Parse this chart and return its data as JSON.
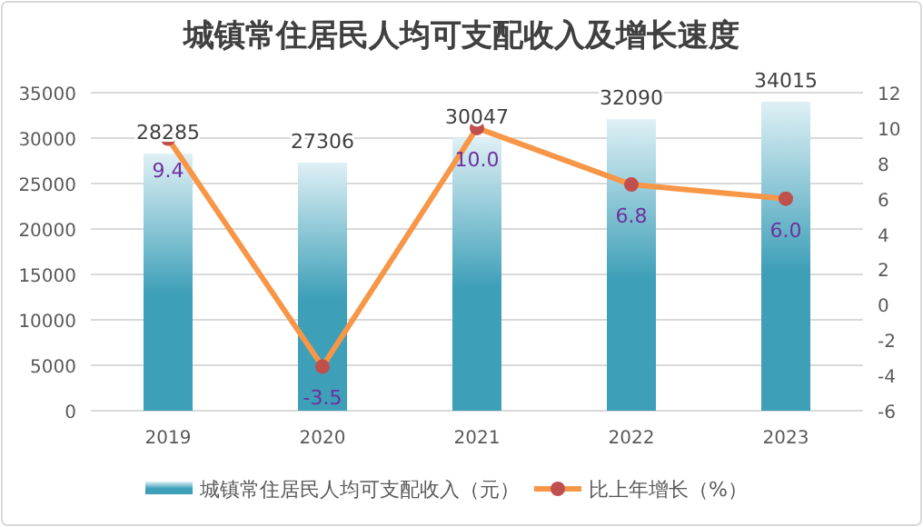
{
  "chart_data": {
    "type": "bar",
    "title": "城镇常住居民人均可支配收入及增长速度",
    "categories": [
      "2019",
      "2020",
      "2021",
      "2022",
      "2023"
    ],
    "series": [
      {
        "name": "城镇常住居民人均可支配收入（元）",
        "color": "#3d9fb8",
        "values": [
          28285,
          27306,
          30047,
          32090,
          34015
        ]
      },
      {
        "name": "比上年增长（%）",
        "type": "line",
        "axis": "y2",
        "color": "#f79646",
        "marker": "circle",
        "values": [
          9.4,
          -3.5,
          10.0,
          6.8,
          6.0
        ],
        "value_labels": [
          "9.4",
          "-3.5",
          "10.0",
          "6.8",
          "6.0"
        ]
      }
    ],
    "ylim": [
      0,
      35000
    ],
    "yticks": [
      0,
      5000,
      10000,
      15000,
      20000,
      25000,
      30000,
      35000
    ],
    "y2lim": [
      -6,
      12
    ],
    "y2ticks": [
      -6,
      -4,
      -2,
      0,
      2,
      4,
      6,
      8,
      10,
      12
    ],
    "grid": "y",
    "legend": "bottom",
    "data_labels": true
  }
}
